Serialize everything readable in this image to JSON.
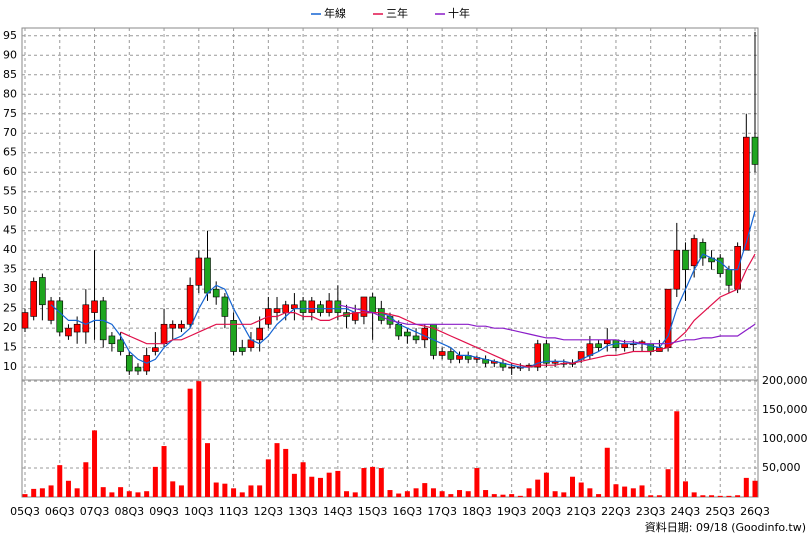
{
  "chart_data": [
    {
      "type": "candlestick",
      "categories": [
        "05Q3",
        null,
        null,
        null,
        "06Q3",
        null,
        null,
        null,
        "07Q3",
        null,
        null,
        null,
        "08Q3",
        null,
        null,
        null,
        "09Q3",
        null,
        null,
        null,
        "10Q3",
        null,
        null,
        null,
        "11Q3",
        null,
        null,
        null,
        "12Q3",
        null,
        null,
        null,
        "13Q3",
        null,
        null,
        null,
        "14Q3",
        null,
        null,
        null,
        "15Q3",
        null,
        null,
        null,
        "16Q3",
        null,
        null,
        null,
        "17Q3",
        null,
        null,
        null,
        "18Q3",
        null,
        null,
        null,
        "19Q3",
        null,
        null,
        null,
        "20Q3",
        null,
        null,
        null,
        "21Q3",
        null,
        null,
        null,
        "22Q3",
        null,
        null,
        null,
        "23Q3",
        null,
        null,
        null,
        "24Q3",
        null,
        null,
        null,
        "25Q3",
        null,
        null,
        null,
        "26Q3"
      ],
      "open": [
        20,
        23,
        33,
        22,
        27,
        18,
        19,
        19,
        24,
        27,
        18,
        17,
        13,
        10,
        9,
        14,
        16,
        20,
        20,
        21,
        31,
        38,
        30,
        28,
        22,
        15,
        15,
        17,
        21,
        24,
        24,
        25,
        27,
        24,
        26,
        24,
        27,
        24,
        22,
        23,
        28,
        25,
        23,
        21,
        19,
        18,
        17,
        21,
        13,
        14,
        12,
        13,
        12,
        12,
        11,
        11,
        10,
        10,
        10,
        10,
        16,
        11,
        11,
        11,
        12,
        13,
        16,
        16,
        17,
        15,
        16,
        16,
        16,
        14,
        15,
        30,
        40,
        36,
        42,
        38,
        38,
        35,
        30,
        40,
        69
      ],
      "high": [
        25,
        33,
        34,
        28,
        28,
        21,
        23,
        30,
        40,
        28,
        19,
        19,
        14,
        11,
        15,
        19,
        25,
        22,
        22,
        33,
        40,
        45,
        32,
        29,
        24,
        17,
        19,
        23,
        28,
        28,
        27,
        29,
        28,
        28,
        27,
        29,
        31,
        26,
        26,
        28,
        29,
        27,
        24,
        22,
        20,
        20,
        21,
        21,
        15,
        15,
        14,
        14,
        13,
        13,
        12,
        12,
        11,
        11,
        11,
        17,
        17,
        12,
        12,
        12,
        14,
        18,
        17,
        20,
        17,
        17,
        17,
        17,
        16,
        17,
        30,
        47,
        42,
        44,
        43,
        40,
        39,
        36,
        42,
        75,
        96
      ],
      "low": [
        19,
        22,
        22,
        21,
        18,
        17,
        16,
        16,
        17,
        15,
        14,
        13,
        8,
        8,
        8,
        13,
        15,
        17,
        19,
        20,
        29,
        27,
        26,
        20,
        13,
        13,
        14,
        14,
        20,
        22,
        22,
        22,
        22,
        22,
        23,
        23,
        22,
        20,
        21,
        21,
        17,
        21,
        20,
        17,
        16,
        16,
        15,
        12,
        12,
        11,
        11,
        11,
        11,
        10,
        10,
        9,
        8,
        9,
        9,
        9,
        10,
        10,
        10,
        10,
        11,
        12,
        14,
        14,
        14,
        14,
        14,
        14,
        13,
        14,
        14,
        28,
        27,
        33,
        36,
        35,
        33,
        29,
        29,
        40,
        60
      ],
      "close": [
        24,
        32,
        26,
        27,
        19,
        20,
        21,
        26,
        27,
        17,
        16,
        14,
        9,
        9,
        13,
        15,
        21,
        21,
        21,
        31,
        38,
        29,
        28,
        23,
        14,
        14,
        17,
        20,
        25,
        25,
        26,
        26,
        24,
        27,
        24,
        27,
        24,
        23,
        24,
        28,
        24,
        22,
        21,
        18,
        18,
        17,
        20,
        13,
        14,
        12,
        13,
        12,
        12.5,
        11,
        11.5,
        10,
        10,
        10,
        10.5,
        16,
        11,
        11.5,
        11,
        11,
        14,
        16,
        15,
        17,
        15,
        16,
        16,
        16.5,
        14,
        15,
        30,
        40,
        35,
        43,
        38,
        37,
        34,
        31,
        41,
        69,
        62
      ],
      "up_color": "#ff0000",
      "down_color": "#1fa51f",
      "series": [
        {
          "name": "年線",
          "color": "#1464d2",
          "values": [
            null,
            null,
            null,
            26,
            24,
            22,
            22,
            21,
            22,
            22,
            21,
            18,
            14,
            12,
            11,
            12,
            15,
            17,
            18,
            20,
            25,
            29,
            31,
            30,
            25,
            21,
            17,
            16,
            18,
            21,
            23,
            25,
            25,
            25,
            25,
            25,
            25,
            25,
            24,
            24,
            24,
            24,
            23,
            21,
            20,
            19,
            18,
            17,
            16,
            15,
            13,
            13,
            12.5,
            12,
            11.5,
            11,
            10.5,
            10,
            10,
            11,
            11.5,
            11.5,
            11.5,
            11,
            12,
            13,
            14,
            15.5,
            16,
            16,
            16,
            16,
            15.5,
            15,
            18,
            25,
            30,
            35,
            39,
            38,
            37,
            35,
            35,
            42,
            50
          ]
        },
        {
          "name": "三年",
          "color": "#e0104a",
          "values": [
            null,
            null,
            null,
            null,
            null,
            null,
            null,
            null,
            null,
            null,
            null,
            19,
            18,
            17,
            16,
            16,
            16,
            17,
            17,
            18,
            19,
            20,
            21,
            21,
            21,
            21,
            21,
            22,
            23,
            23,
            24,
            24,
            23,
            23,
            22,
            22,
            23,
            23.5,
            24,
            24,
            24,
            24,
            23.5,
            23,
            22,
            21,
            20.5,
            20,
            19,
            18,
            17,
            16,
            15,
            14,
            13,
            12,
            11,
            10.5,
            10,
            10.5,
            10.5,
            10.5,
            11,
            11,
            11.5,
            12,
            12.5,
            13,
            13,
            13.5,
            14,
            14,
            14,
            14.5,
            15,
            17,
            19,
            22,
            24,
            26,
            28,
            29,
            30,
            35,
            39
          ]
        },
        {
          "name": "十年",
          "color": "#8a1cc8",
          "values": [
            null,
            null,
            null,
            null,
            null,
            null,
            null,
            null,
            null,
            null,
            null,
            null,
            null,
            null,
            null,
            null,
            null,
            null,
            null,
            null,
            null,
            null,
            null,
            null,
            null,
            null,
            null,
            null,
            null,
            null,
            null,
            null,
            null,
            null,
            null,
            null,
            26,
            25.5,
            25,
            24.5,
            24,
            23,
            22,
            21.5,
            21,
            21,
            21,
            21,
            21,
            21,
            21,
            21,
            20.5,
            20.5,
            20,
            20,
            19.5,
            19,
            18.5,
            18,
            17.5,
            17.5,
            17,
            17,
            17,
            17,
            17,
            17,
            17,
            16.5,
            16.5,
            16,
            16,
            16,
            16,
            16.5,
            17,
            17,
            17.5,
            17.5,
            18,
            18,
            18,
            19.5,
            21
          ]
        }
      ],
      "ylim": [
        6.7,
        97
      ],
      "yticks": [
        10,
        15,
        20,
        25,
        30,
        35,
        40,
        45,
        50,
        55,
        60,
        65,
        70,
        75,
        80,
        85,
        90,
        95
      ],
      "grid": true,
      "legend": "top"
    },
    {
      "type": "bar",
      "color": "#ff0000",
      "values": [
        5000,
        14000,
        15000,
        20000,
        55000,
        28000,
        15000,
        60000,
        115000,
        17000,
        8000,
        17000,
        10000,
        8000,
        10000,
        52000,
        88000,
        27000,
        20000,
        187000,
        200000,
        93000,
        25000,
        23000,
        15000,
        8000,
        20000,
        20000,
        65000,
        93000,
        83000,
        40000,
        60000,
        35000,
        33000,
        42000,
        45000,
        10000,
        8000,
        50000,
        52000,
        50000,
        12000,
        6000,
        10000,
        15000,
        24000,
        15000,
        10000,
        5000,
        12000,
        10000,
        50000,
        12000,
        5000,
        4000,
        5000,
        2000,
        15000,
        30000,
        42000,
        10000,
        8000,
        35000,
        25000,
        15000,
        5000,
        85000,
        22000,
        18000,
        15000,
        20000,
        3000,
        3000,
        48000,
        148000,
        27000,
        8000,
        3000,
        3000,
        2000,
        2000,
        3000,
        33000,
        28000
      ],
      "ylim": [
        0,
        202000
      ],
      "yticks": [
        {
          "value": 50000,
          "label": "50,000"
        },
        {
          "value": 100000,
          "label": "100,000"
        },
        {
          "value": 150000,
          "label": "150,000"
        },
        {
          "value": 200000,
          "label": "200,000"
        }
      ],
      "grid": true
    }
  ],
  "footnote": "資料日期: 09/18 (Goodinfo.tw)"
}
